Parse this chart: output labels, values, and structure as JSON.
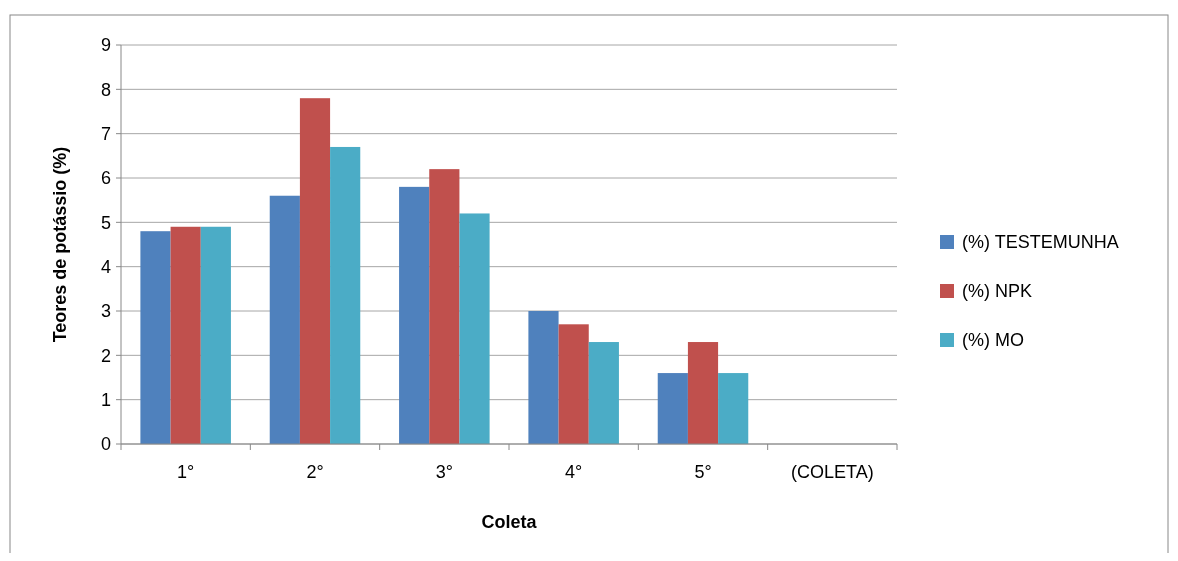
{
  "chart_data": {
    "type": "bar",
    "xlabel": "Coleta",
    "ylabel": "Teores de potássio (%)",
    "categories": [
      "1°",
      "2°",
      "3°",
      "4°",
      "5°",
      "(COLETA)"
    ],
    "series": [
      {
        "name": "(%) TESTEMUNHA",
        "color": "#4f81bd",
        "values": [
          4.8,
          5.6,
          5.8,
          3.0,
          1.6,
          null
        ]
      },
      {
        "name": "(%) NPK",
        "color": "#c0504d",
        "values": [
          4.9,
          7.8,
          6.2,
          2.7,
          2.3,
          null
        ]
      },
      {
        "name": "(%) MO",
        "color": "#4bacc6",
        "values": [
          4.9,
          6.7,
          5.2,
          2.3,
          1.6,
          null
        ]
      }
    ],
    "ylim": [
      0,
      9
    ],
    "yticks": [
      0,
      1,
      2,
      3,
      4,
      5,
      6,
      7,
      8,
      9
    ],
    "grid": "y",
    "legend": "right"
  }
}
